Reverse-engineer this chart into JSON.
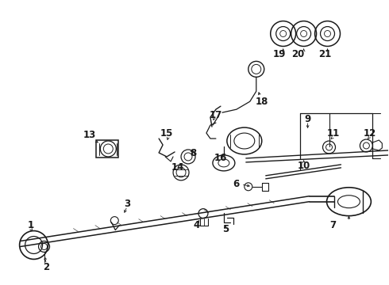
{
  "bg_color": "#ffffff",
  "line_color": "#1a1a1a",
  "fig_width": 4.9,
  "fig_height": 3.6,
  "dpi": 100,
  "font_size_labels": 8.5
}
